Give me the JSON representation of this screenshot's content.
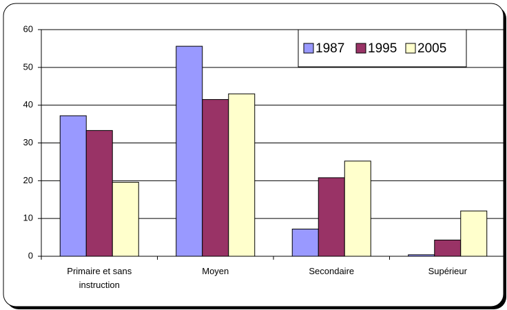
{
  "chart_data": {
    "type": "bar",
    "categories": [
      "Primaire et sans instruction",
      "Moyen",
      "Secondaire",
      "Supérieur"
    ],
    "series": [
      {
        "name": "1987",
        "color": "#9999ff",
        "values": [
          37.2,
          55.6,
          7.2,
          0.4
        ]
      },
      {
        "name": "1995",
        "color": "#993366",
        "values": [
          33.3,
          41.5,
          20.8,
          4.3
        ]
      },
      {
        "name": "2005",
        "color": "#ffffcc",
        "values": [
          19.6,
          43.0,
          25.2,
          12.0
        ]
      }
    ],
    "ylim": [
      0,
      60
    ],
    "yticks": [
      0,
      10,
      20,
      30,
      40,
      50,
      60
    ],
    "grid": true
  }
}
